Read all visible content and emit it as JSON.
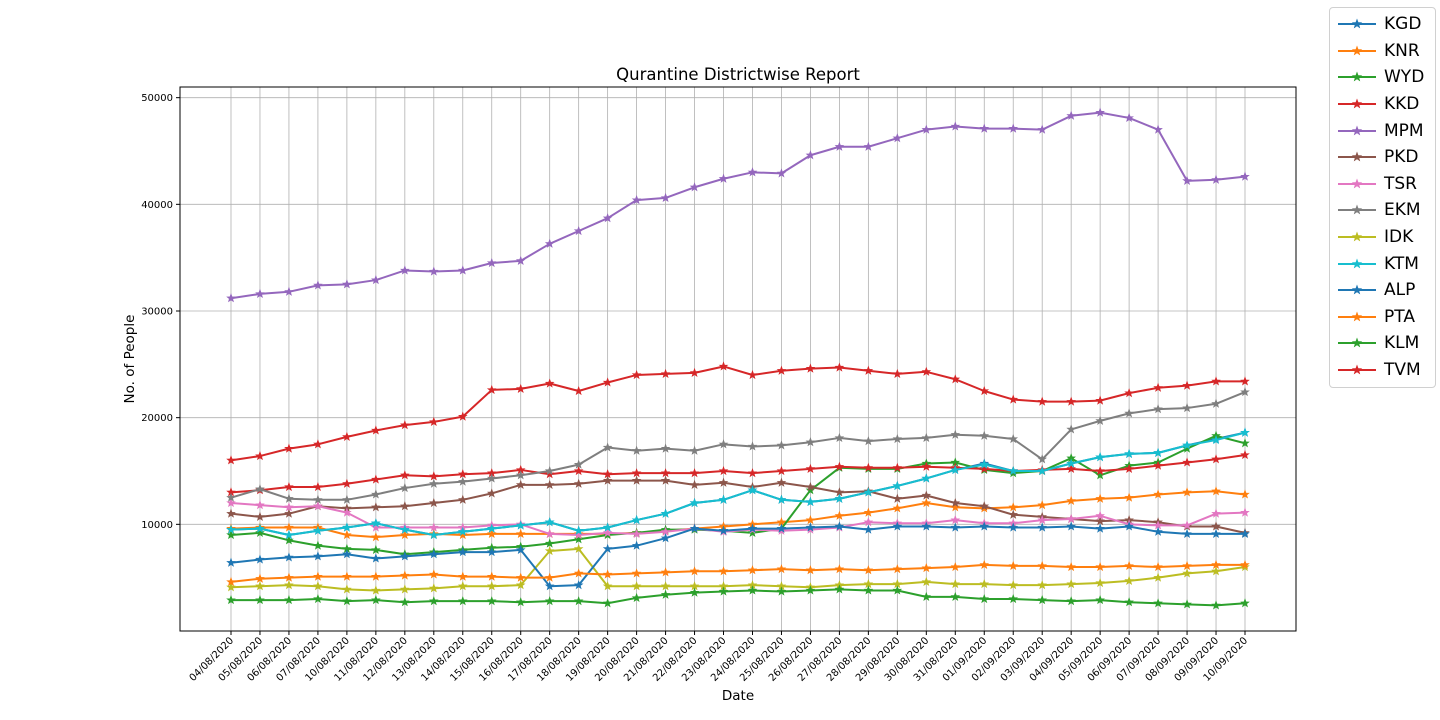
{
  "chart_data": {
    "type": "line",
    "title": "Qurantine Districtwise Report",
    "xlabel": "Date",
    "ylabel": "No. of People",
    "ylim": [
      0,
      51000
    ],
    "y_ticks": [
      10000,
      20000,
      30000,
      40000,
      50000
    ],
    "grid": true,
    "legend_position": "outside-top-right",
    "marker": "star",
    "categories": [
      "04/08/2020",
      "05/08/2020",
      "06/08/2020",
      "07/08/2020",
      "10/08/2020",
      "11/08/2020",
      "12/08/2020",
      "13/08/2020",
      "14/08/2020",
      "15/08/2020",
      "16/08/2020",
      "17/08/2020",
      "18/08/2020",
      "19/08/2020",
      "20/08/2020",
      "21/08/2020",
      "22/08/2020",
      "23/08/2020",
      "24/08/2020",
      "25/08/2020",
      "26/08/2020",
      "27/08/2020",
      "28/08/2020",
      "29/08/2020",
      "30/08/2020",
      "31/08/2020",
      "01/09/2020",
      "02/09/2020",
      "03/09/2020",
      "04/09/2020",
      "05/09/2020",
      "06/09/2020",
      "07/09/2020",
      "08/09/2020",
      "09/09/2020",
      "10/09/2020"
    ],
    "series": [
      {
        "name": "KGD",
        "color": "#1f77b4",
        "values": [
          9500,
          9600,
          9000,
          9400,
          9700,
          10100,
          9500,
          9000,
          9300,
          9600,
          9900,
          10200,
          9400,
          9700,
          10400,
          11000,
          12000,
          12300,
          13200,
          12300,
          12100,
          12400,
          13000,
          13600,
          14300,
          15100,
          15700,
          15000,
          15000,
          15700,
          16300,
          16600,
          16700,
          17400,
          18000,
          18600
        ]
      },
      {
        "name": "KNR",
        "color": "#ff7f0e",
        "values": [
          9600,
          9700,
          9700,
          9700,
          9000,
          8800,
          9000,
          9100,
          9000,
          9100,
          9100,
          9100,
          9100,
          9100,
          9200,
          9400,
          9600,
          9800,
          10000,
          10200,
          10400,
          10800,
          11100,
          11500,
          12000,
          11600,
          11500,
          11600,
          11800,
          12200,
          12400,
          12500,
          12800,
          13000,
          13100,
          12800
        ]
      },
      {
        "name": "WYD",
        "color": "#2ca02c",
        "values": [
          9000,
          9200,
          8500,
          8000,
          7700,
          7600,
          7200,
          7400,
          7600,
          7800,
          7900,
          8200,
          8600,
          9000,
          9200,
          9500,
          9500,
          9400,
          9200,
          9600,
          13200,
          15300,
          15200,
          15200,
          15700,
          15800,
          15100,
          14800,
          15000,
          16200,
          14600,
          15500,
          15800,
          17100,
          18300,
          17600
        ]
      },
      {
        "name": "KKD",
        "color": "#d62728",
        "values": [
          13000,
          13200,
          13500,
          13500,
          13800,
          14200,
          14600,
          14500,
          14700,
          14800,
          15100,
          14700,
          15000,
          14700,
          14800,
          14800,
          14800,
          15000,
          14800,
          15000,
          15200,
          15400,
          15300,
          15300,
          15400,
          15300,
          15200,
          15000,
          15100,
          15200,
          15000,
          15200,
          15500,
          15800,
          16100,
          16500
        ]
      },
      {
        "name": "MPM",
        "color": "#9467bd",
        "values": [
          31200,
          31600,
          31800,
          32400,
          32500,
          32900,
          33800,
          33700,
          33800,
          34500,
          34700,
          36300,
          37500,
          38700,
          40400,
          40600,
          41600,
          42400,
          43000,
          42900,
          44600,
          45400,
          45400,
          46200,
          47000,
          47300,
          47100,
          47100,
          47000,
          48300,
          48600,
          48100,
          47000,
          42200,
          42300,
          42600
        ]
      },
      {
        "name": "PKD",
        "color": "#8c564b",
        "values": [
          11000,
          10700,
          11000,
          11700,
          11500,
          11600,
          11700,
          12000,
          12300,
          12900,
          13700,
          13700,
          13800,
          14100,
          14100,
          14100,
          13700,
          13900,
          13500,
          13900,
          13500,
          13000,
          13100,
          12400,
          12700,
          12000,
          11700,
          10900,
          10700,
          10500,
          10300,
          10400,
          10200,
          9800,
          9800,
          9200
        ]
      },
      {
        "name": "TSR",
        "color": "#e377c2",
        "values": [
          12000,
          11800,
          11600,
          11700,
          11100,
          9700,
          9700,
          9700,
          9700,
          9900,
          10000,
          9100,
          9000,
          9200,
          9100,
          9300,
          9600,
          9300,
          9500,
          9400,
          9500,
          9700,
          10200,
          10100,
          10100,
          10400,
          10100,
          10100,
          10400,
          10500,
          10800,
          10000,
          9900,
          9900,
          11000,
          11100
        ]
      },
      {
        "name": "EKM",
        "color": "#7f7f7f",
        "values": [
          12500,
          13300,
          12400,
          12300,
          12300,
          12800,
          13400,
          13800,
          14000,
          14300,
          14600,
          15000,
          15600,
          17200,
          16900,
          17100,
          16900,
          17500,
          17300,
          17400,
          17700,
          18100,
          17800,
          18000,
          18100,
          18400,
          18300,
          18000,
          16100,
          18900,
          19700,
          20400,
          20800,
          20900,
          21300,
          22400
        ]
      },
      {
        "name": "IDK",
        "color": "#bcbd22",
        "values": [
          4100,
          4200,
          4300,
          4200,
          3900,
          3800,
          3900,
          4000,
          4200,
          4200,
          4300,
          7500,
          7700,
          4200,
          4200,
          4200,
          4200,
          4200,
          4300,
          4200,
          4100,
          4300,
          4400,
          4400,
          4600,
          4400,
          4400,
          4300,
          4300,
          4400,
          4500,
          4700,
          5000,
          5400,
          5600,
          6000
        ]
      },
      {
        "name": "KTM",
        "color": "#17becf",
        "values": [
          9500,
          9600,
          9000,
          9400,
          9700,
          10100,
          9500,
          9000,
          9300,
          9600,
          9900,
          10200,
          9400,
          9700,
          10400,
          11000,
          12000,
          12300,
          13200,
          12300,
          12100,
          12400,
          13000,
          13600,
          14300,
          15100,
          15600,
          15000,
          15000,
          15700,
          16300,
          16600,
          16700,
          17400,
          17900,
          18600
        ]
      },
      {
        "name": "ALP",
        "color": "#1f77b4",
        "values": [
          6400,
          6700,
          6900,
          7000,
          7200,
          6800,
          7000,
          7200,
          7400,
          7400,
          7600,
          4200,
          4300,
          7700,
          8000,
          8700,
          9600,
          9400,
          9600,
          9600,
          9700,
          9800,
          9500,
          9800,
          9800,
          9700,
          9800,
          9700,
          9700,
          9800,
          9600,
          9800,
          9300,
          9100,
          9100,
          9100
        ]
      },
      {
        "name": "PTA",
        "color": "#ff7f0e",
        "values": [
          4600,
          4900,
          5000,
          5100,
          5100,
          5100,
          5200,
          5300,
          5100,
          5100,
          5000,
          5000,
          5400,
          5300,
          5400,
          5500,
          5600,
          5600,
          5700,
          5800,
          5700,
          5800,
          5700,
          5800,
          5900,
          6000,
          6200,
          6100,
          6100,
          6000,
          6000,
          6100,
          6000,
          6100,
          6200,
          6200
        ]
      },
      {
        "name": "KLM",
        "color": "#2ca02c",
        "values": [
          2900,
          2900,
          2900,
          3000,
          2800,
          2900,
          2700,
          2800,
          2800,
          2800,
          2700,
          2800,
          2800,
          2600,
          3100,
          3400,
          3600,
          3700,
          3800,
          3700,
          3800,
          3900,
          3800,
          3800,
          3200,
          3200,
          3000,
          3000,
          2900,
          2800,
          2900,
          2700,
          2600,
          2500,
          2400,
          2600
        ]
      },
      {
        "name": "TVM",
        "color": "#d62728",
        "values": [
          16000,
          16400,
          17100,
          17500,
          18200,
          18800,
          19300,
          19600,
          20100,
          22600,
          22700,
          23200,
          22500,
          23300,
          24000,
          24100,
          24200,
          24800,
          24000,
          24400,
          24600,
          24700,
          24400,
          24100,
          24300,
          23600,
          22500,
          21700,
          21500,
          21500,
          21600,
          22300,
          22800,
          23000,
          23400,
          23400
        ]
      }
    ]
  }
}
